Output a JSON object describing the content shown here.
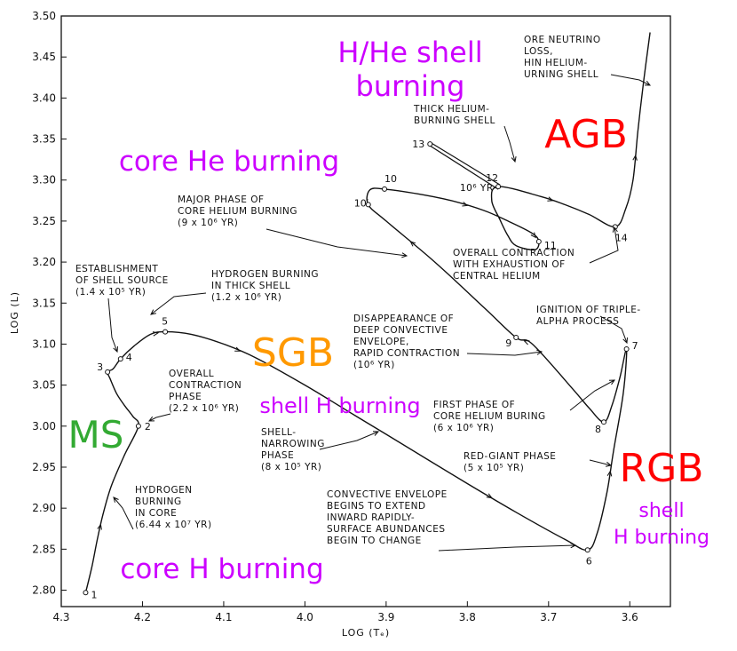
{
  "chart_data": {
    "type": "line",
    "title": "",
    "xlabel": "LOG (Tₑ)",
    "ylabel": "LOG (L)",
    "xlim": [
      4.3,
      3.55
    ],
    "ylim": [
      2.78,
      3.5
    ],
    "x_reversed": true,
    "grid": false,
    "x_ticks": [
      {
        "value": 4.3,
        "label": "4.3"
      },
      {
        "value": 4.2,
        "label": "4.2"
      },
      {
        "value": 4.1,
        "label": "4.1"
      },
      {
        "value": 4.0,
        "label": "4.0"
      },
      {
        "value": 3.9,
        "label": "3.9"
      },
      {
        "value": 3.8,
        "label": "3.8"
      },
      {
        "value": 3.7,
        "label": "3.7"
      },
      {
        "value": 3.6,
        "label": "3.6"
      }
    ],
    "y_ticks": [
      {
        "value": 3.5,
        "label": "3.50"
      },
      {
        "value": 3.45,
        "label": "3.45"
      },
      {
        "value": 3.4,
        "label": "3.40"
      },
      {
        "value": 3.35,
        "label": "3.35"
      },
      {
        "value": 3.3,
        "label": "3.30"
      },
      {
        "value": 3.25,
        "label": "3.25"
      },
      {
        "value": 3.2,
        "label": "3.20"
      },
      {
        "value": 3.15,
        "label": "3.15"
      },
      {
        "value": 3.1,
        "label": "3.10"
      },
      {
        "value": 3.05,
        "label": "3.05"
      },
      {
        "value": 3.0,
        "label": "3.00"
      },
      {
        "value": 2.95,
        "label": "2.95"
      },
      {
        "value": 2.9,
        "label": "2.90"
      },
      {
        "value": 2.85,
        "label": "2.85"
      },
      {
        "value": 2.8,
        "label": "2.80"
      }
    ],
    "track": [
      [
        4.27,
        2.797
      ],
      [
        4.262,
        2.83
      ],
      [
        4.255,
        2.865
      ],
      [
        4.248,
        2.895
      ],
      [
        4.238,
        2.928
      ],
      [
        4.222,
        2.965
      ],
      [
        4.205,
        3.0
      ],
      [
        4.212,
        3.012
      ],
      [
        4.222,
        3.025
      ],
      [
        4.232,
        3.04
      ],
      [
        4.24,
        3.058
      ],
      [
        4.243,
        3.066
      ],
      [
        4.236,
        3.07
      ],
      [
        4.227,
        3.082
      ],
      [
        4.21,
        3.098
      ],
      [
        4.19,
        3.112
      ],
      [
        4.172,
        3.115
      ],
      [
        4.14,
        3.112
      ],
      [
        4.1,
        3.1
      ],
      [
        4.06,
        3.083
      ],
      [
        4.0,
        3.05
      ],
      [
        3.95,
        3.02
      ],
      [
        3.9,
        2.99
      ],
      [
        3.8,
        2.93
      ],
      [
        3.74,
        2.895
      ],
      [
        3.68,
        2.862
      ],
      [
        3.652,
        2.849
      ],
      [
        3.64,
        2.87
      ],
      [
        3.628,
        2.92
      ],
      [
        3.62,
        2.97
      ],
      [
        3.608,
        3.04
      ],
      [
        3.604,
        3.094
      ],
      [
        3.612,
        3.06
      ],
      [
        3.622,
        3.025
      ],
      [
        3.632,
        3.005
      ],
      [
        3.65,
        3.022
      ],
      [
        3.67,
        3.045
      ],
      [
        3.72,
        3.1
      ],
      [
        3.74,
        3.108
      ],
      [
        3.78,
        3.145
      ],
      [
        3.84,
        3.2
      ],
      [
        3.9,
        3.25
      ],
      [
        3.922,
        3.27
      ],
      [
        3.92,
        3.288
      ],
      [
        3.902,
        3.289
      ],
      [
        3.86,
        3.283
      ],
      [
        3.82,
        3.275
      ],
      [
        3.78,
        3.263
      ],
      [
        3.75,
        3.25
      ],
      [
        3.72,
        3.235
      ],
      [
        3.712,
        3.225
      ],
      [
        3.717,
        3.215
      ],
      [
        3.74,
        3.22
      ],
      [
        3.75,
        3.232
      ],
      [
        3.76,
        3.252
      ],
      [
        3.77,
        3.275
      ],
      [
        3.762,
        3.292
      ],
      [
        3.71,
        3.28
      ],
      [
        3.68,
        3.27
      ],
      [
        3.65,
        3.258
      ],
      [
        3.618,
        3.243
      ],
      [
        3.605,
        3.265
      ],
      [
        3.596,
        3.3
      ],
      [
        3.59,
        3.36
      ],
      [
        3.583,
        3.42
      ],
      [
        3.575,
        3.48
      ]
    ],
    "stage_points": [
      {
        "label": "1",
        "x": 4.27,
        "y": 2.797
      },
      {
        "label": "2",
        "x": 4.205,
        "y": 3.0
      },
      {
        "label": "3",
        "x": 4.243,
        "y": 3.066
      },
      {
        "label": "4",
        "x": 4.227,
        "y": 3.082
      },
      {
        "label": "5",
        "x": 4.172,
        "y": 3.115
      },
      {
        "label": "6",
        "x": 3.652,
        "y": 2.849
      },
      {
        "label": "7",
        "x": 3.604,
        "y": 3.094
      },
      {
        "label": "8",
        "x": 3.632,
        "y": 3.005
      },
      {
        "label": "9",
        "x": 3.74,
        "y": 3.108
      },
      {
        "label": "10′",
        "x": 3.922,
        "y": 3.27
      },
      {
        "label": "10",
        "x": 3.902,
        "y": 3.289
      },
      {
        "label": "11",
        "x": 3.712,
        "y": 3.225
      },
      {
        "label": "12",
        "x": 3.762,
        "y": 3.292
      },
      {
        "label": "13",
        "x": 3.846,
        "y": 3.344
      },
      {
        "label": "14",
        "x": 3.618,
        "y": 3.243
      }
    ],
    "annotations": [
      {
        "lines": [
          "HYDROGEN",
          "BURNING",
          "IN CORE",
          "(6.44 x 10⁷ YR)"
        ]
      },
      {
        "lines": [
          "OVERALL",
          "CONTRACTION",
          "PHASE",
          "(2.2 x 10⁶ YR)"
        ]
      },
      {
        "lines": [
          "ESTABLISHMENT",
          "OF SHELL SOURCE",
          "(1.4 x 10⁵ YR)"
        ]
      },
      {
        "lines": [
          "HYDROGEN BURNING",
          "IN THICK SHELL",
          "(1.2 x 10⁶ YR)"
        ]
      },
      {
        "lines": [
          "SHELL-",
          "NARROWING",
          "PHASE",
          "(8 x 10⁵ YR)"
        ]
      },
      {
        "lines": [
          "CONVECTIVE ENVELOPE",
          "BEGINS TO EXTEND",
          "INWARD RAPIDLY-",
          "SURFACE ABUNDANCES",
          "BEGIN TO CHANGE"
        ]
      },
      {
        "lines": [
          "RED-GIANT PHASE",
          "(5 x 10⁵ YR)"
        ]
      },
      {
        "lines": [
          "FIRST PHASE OF",
          "CORE HELIUM BURING",
          "(6 x 10⁶ YR)"
        ]
      },
      {
        "lines": [
          "IGNITION OF TRIPLE-",
          "ALPHA PROCESS"
        ]
      },
      {
        "lines": [
          "DISAPPEARANCE OF",
          "DEEP CONVECTIVE",
          "ENVELOPE,",
          "RAPID CONTRACTION",
          "(10⁶ YR)"
        ]
      },
      {
        "lines": [
          "OVERALL CONTRACTION",
          "WITH EXHAUSTION OF",
          "CENTRAL HELIUM"
        ]
      },
      {
        "lines": [
          "MAJOR PHASE OF",
          "CORE HELIUM BURNING",
          "(9 x 10⁶ YR)"
        ]
      },
      {
        "lines": [
          "THICK HELIUM-",
          "BURNING SHELL"
        ]
      },
      {
        "lines": [
          "ORE NEUTRINO",
          "LOSS,",
          "HIN HELIUM-",
          "URNING SHELL"
        ]
      },
      {
        "lines": [
          "10⁶ YR"
        ]
      }
    ],
    "overlay_labels": [
      {
        "text": "H/He shell",
        "color": "#cc00ff"
      },
      {
        "text": "burning",
        "color": "#cc00ff"
      },
      {
        "text": "AGB",
        "color": "#ff0000"
      },
      {
        "text": "core He burning",
        "color": "#cc00ff"
      },
      {
        "text": "SGB",
        "color": "#ff9900"
      },
      {
        "text": "shell H burning",
        "color": "#cc00ff"
      },
      {
        "text": "MS",
        "color": "#33aa33"
      },
      {
        "text": "RGB",
        "color": "#ff0000"
      },
      {
        "text": "shell",
        "color": "#cc00ff"
      },
      {
        "text": "H burning",
        "color": "#cc00ff"
      },
      {
        "text": "core H burning",
        "color": "#cc00ff"
      }
    ]
  }
}
